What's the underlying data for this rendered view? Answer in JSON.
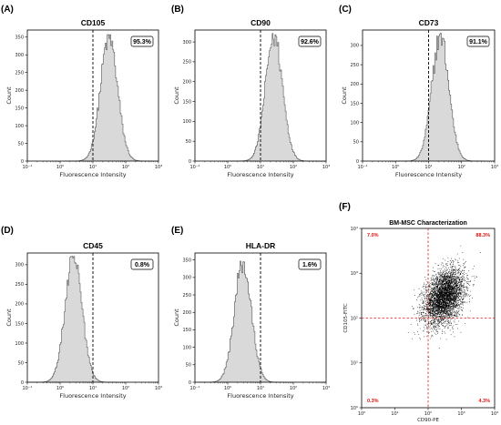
{
  "chart_data": [
    {
      "panel": "(A)",
      "type": "histogram",
      "title": "CD105",
      "xlabel": "Fluorescence Intensity",
      "ylabel": "Count",
      "xscale": "log",
      "xlim": [
        0.1,
        1000
      ],
      "ylim": [
        0,
        370
      ],
      "xticks": [
        "10⁻¹",
        "10⁰",
        "10¹",
        "10²",
        "10³"
      ],
      "yticks": [
        0,
        50,
        100,
        150,
        200,
        250,
        300,
        350
      ],
      "gate": 10,
      "percent_label": "95.3%",
      "peak_x": 30,
      "peak_count": 350
    },
    {
      "panel": "(B)",
      "type": "histogram",
      "title": "CD90",
      "xlabel": "Fluorescence Intensity",
      "ylabel": "Count",
      "xscale": "log",
      "xlim": [
        0.1,
        1000
      ],
      "ylim": [
        0,
        330
      ],
      "xticks": [
        "10⁻¹",
        "10⁰",
        "10¹",
        "10²",
        "10³"
      ],
      "yticks": [
        0,
        50,
        100,
        150,
        200,
        250,
        300
      ],
      "gate": 10,
      "percent_label": "92.6%",
      "peak_x": 25,
      "peak_count": 315
    },
    {
      "panel": "(C)",
      "type": "histogram",
      "title": "CD73",
      "xlabel": "Fluorescence Intensity",
      "ylabel": "Count",
      "xscale": "log",
      "xlim": [
        0.1,
        1000
      ],
      "ylim": [
        0,
        340
      ],
      "xticks": [
        "10⁻¹",
        "10⁰",
        "10¹",
        "10²",
        "10³"
      ],
      "yticks": [
        0,
        50,
        100,
        150,
        200,
        250,
        300
      ],
      "gate": 10,
      "percent_label": "91.1%",
      "peak_x": 22,
      "peak_count": 325
    },
    {
      "panel": "(D)",
      "type": "histogram",
      "title": "CD45",
      "xlabel": "Fluorescence Intensity",
      "ylabel": "Count",
      "xscale": "log",
      "xlim": [
        0.1,
        1000
      ],
      "ylim": [
        0,
        330
      ],
      "xticks": [
        "10⁻¹",
        "10⁰",
        "10¹",
        "10²",
        "10³"
      ],
      "yticks": [
        0,
        50,
        100,
        150,
        200,
        250,
        300
      ],
      "gate": 10,
      "percent_label": "0.8%",
      "peak_x": 2.5,
      "peak_count": 315
    },
    {
      "panel": "(E)",
      "type": "histogram",
      "title": "HLA-DR",
      "xlabel": "Fluorescence Intensity",
      "ylabel": "Count",
      "xscale": "log",
      "xlim": [
        0.1,
        1000
      ],
      "ylim": [
        0,
        370
      ],
      "xticks": [
        "10⁻¹",
        "10⁰",
        "10¹",
        "10²",
        "10³"
      ],
      "yticks": [
        0,
        50,
        100,
        150,
        200,
        250,
        300,
        350
      ],
      "gate": 10,
      "percent_label": "1.6%",
      "peak_x": 2.8,
      "peak_count": 340
    },
    {
      "panel": "(F)",
      "type": "scatter",
      "title": "BM-MSC Characterization",
      "xlabel": "CD90-PE",
      "ylabel": "CD105-FITC",
      "xscale": "log",
      "yscale": "log",
      "xlim": [
        1,
        10000
      ],
      "ylim": [
        1,
        10000
      ],
      "xticks": [
        "10⁰",
        "10¹",
        "10²",
        "10³",
        "10⁴"
      ],
      "yticks": [
        "10⁰",
        "10¹",
        "10²",
        "10³",
        "10⁴"
      ],
      "gate_x": 100,
      "gate_y": 100,
      "quadrant_labels": {
        "upper_left": "7.0%",
        "upper_right": "88.3%",
        "lower_left": "0.3%",
        "lower_right": "4.3%"
      },
      "cluster_center_x": 300,
      "cluster_center_y": 300
    }
  ],
  "colors": {
    "fill": "#d9d9d9",
    "outline": "#555555",
    "gate": "#000000",
    "quadrant": "#e02020",
    "dots": "#000000",
    "quad_text": "#d11111"
  }
}
